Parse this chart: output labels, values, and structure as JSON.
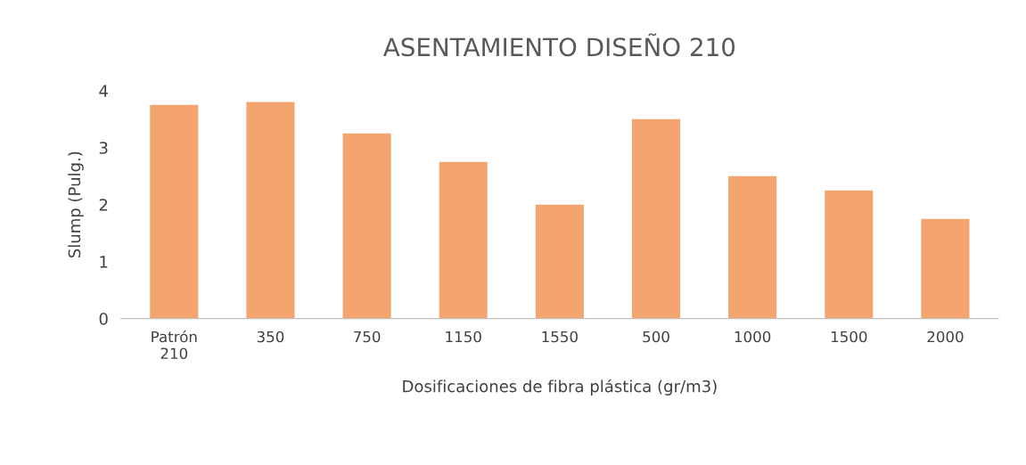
{
  "chart_data": {
    "type": "bar",
    "title": "ASENTAMIENTO DISEÑO 210",
    "xlabel": "Dosificaciones de fibra plástica (gr/m3)",
    "ylabel": "Slump (Pulg.)",
    "categories": [
      "Patrón\n210",
      "350",
      "750",
      "1150",
      "1550",
      "500",
      "1000",
      "1500",
      "2000"
    ],
    "values": [
      3.75,
      3.8,
      3.25,
      2.75,
      2.0,
      3.5,
      2.5,
      2.25,
      1.75
    ],
    "color": "#f4a46e",
    "ylim": [
      0,
      4
    ],
    "yticks": [
      0,
      1,
      2,
      3,
      4
    ],
    "grid": false
  }
}
